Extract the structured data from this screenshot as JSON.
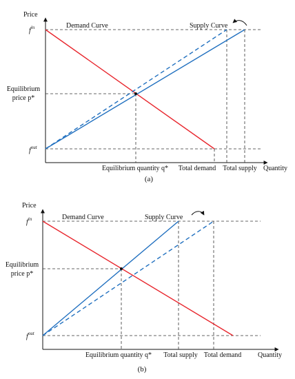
{
  "colors": {
    "demand": "#e8262d",
    "supply": "#1f6fbf",
    "guide": "#333333",
    "axis": "#111111"
  },
  "panels": [
    {
      "id": "a",
      "caption": "(a)",
      "y_axis_label": "Price",
      "x_axis_label": "Quantity",
      "f_in": {
        "base": "f",
        "sup": "in"
      },
      "f_out": {
        "base": "f",
        "sup": "out"
      },
      "equilibrium_price": {
        "line1": "Equilibrium",
        "line2": "price p*"
      },
      "equilibrium_quantity": "Equilibrium quantity q*",
      "demand_curve": "Demand Curve",
      "supply_curve": "Supply Curve",
      "total_demand": "Total demand",
      "total_supply": "Total supply"
    },
    {
      "id": "b",
      "caption": "(b)",
      "y_axis_label": "Price",
      "x_axis_label": "Quantity",
      "f_in": {
        "base": "f",
        "sup": "in"
      },
      "f_out": {
        "base": "f",
        "sup": "out"
      },
      "equilibrium_price": {
        "line1": "Equilibrium",
        "line2": "price p*"
      },
      "equilibrium_quantity": "Equilibrium quantity q*",
      "demand_curve": "Demand Curve",
      "supply_curve": "Supply Curve",
      "total_supply": "Total supply",
      "total_demand": "Total demand"
    }
  ]
}
